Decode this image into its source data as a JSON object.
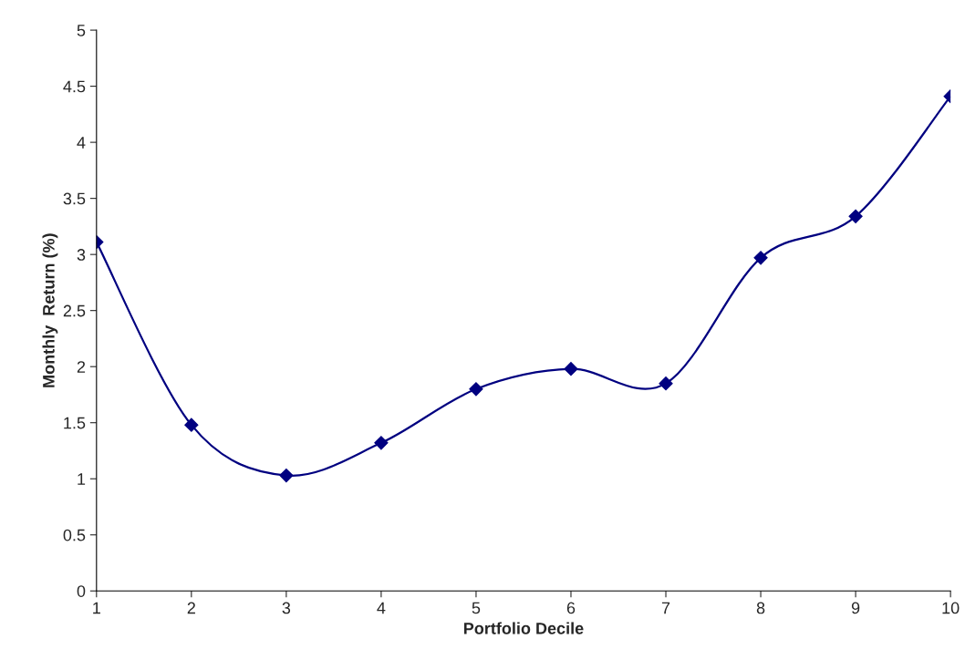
{
  "chart_data": {
    "type": "line",
    "xlabel": "Portfolio Decile",
    "ylabel": "Monthly  Return (%)",
    "categories": [
      "1",
      "2",
      "3",
      "4",
      "5",
      "6",
      "7",
      "8",
      "9",
      "10"
    ],
    "series": [
      {
        "color": "#000080",
        "values": [
          3.11,
          1.48,
          1.03,
          1.32,
          1.8,
          1.98,
          1.85,
          2.97,
          3.34,
          4.41
        ]
      }
    ],
    "ylim": [
      0,
      5
    ],
    "yticks": [
      0,
      0.5,
      1,
      1.5,
      2,
      2.5,
      3,
      3.5,
      4,
      4.5,
      5
    ],
    "marker": "diamond",
    "line_style": "solid",
    "grid": false,
    "legend": false
  }
}
